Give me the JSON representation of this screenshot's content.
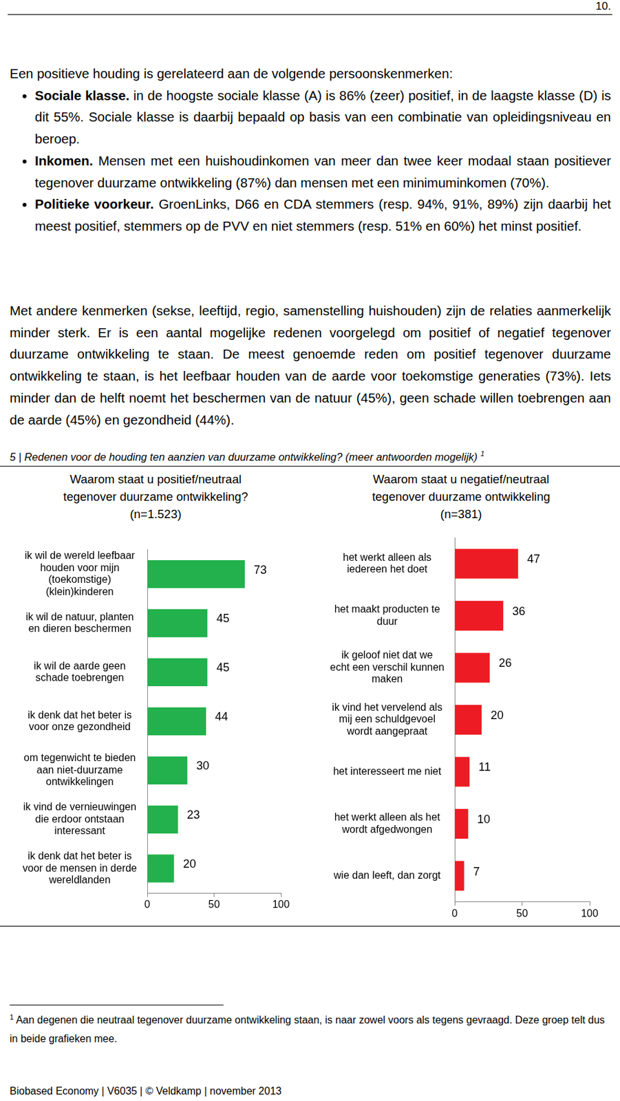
{
  "page_number": "10.",
  "intro": "Een positieve houding is gerelateerd aan de volgende persoonskenmerken:",
  "bullets": [
    {
      "lead": "Sociale klasse.",
      "text": "in de hoogste sociale klasse (A) is 86% (zeer) positief, in de laagste klasse (D) is dit 55%. Sociale klasse is daarbij bepaald op basis van een combinatie van opleidingsniveau en beroep."
    },
    {
      "lead": "Inkomen.",
      "text": "Mensen met een huishoudinkomen van meer dan twee keer modaal staan positiever tegenover duurzame ontwikkeling (87%) dan mensen met een minimuminkomen (70%)."
    },
    {
      "lead": "Politieke voorkeur.",
      "text": "GroenLinks, D66 en CDA stemmers (resp. 94%, 91%, 89%) zijn daarbij het meest positief, stemmers op de PVV en niet stemmers (resp. 51% en 60%) het minst positief."
    }
  ],
  "paragraph": "Met andere kenmerken (sekse, leeftijd, regio, samenstelling huishouden) zijn de relaties aanmerkelijk minder sterk. Er is een aantal mogelijke redenen voorgelegd om positief of negatief tegenover duurzame ontwikkeling te staan. De meest genoemde reden om positief tegenover duurzame ontwikkeling te staan, is het leefbaar houden van de aarde voor toekomstige generaties (73%). Iets minder dan de helft noemt het beschermen van de natuur (45%), geen schade willen toebrengen aan de aarde (45%) en gezondheid (44%).",
  "figure_caption": {
    "text": "5 | Redenen voor de houding ten aanzien van duurzame ontwikkeling? (meer antwoorden mogelijk)",
    "footnote_marker": "1"
  },
  "chart_data": [
    {
      "type": "bar",
      "orientation": "horizontal",
      "title": "Waarom staat u positief/neutraal tegenover duurzame ontwikkeling?",
      "subtitle": "(n=1.523)",
      "categories": [
        "ik wil de wereld leefbaar houden voor mijn (toekomstige) (klein)kinderen",
        "ik wil de natuur, planten en dieren beschermen",
        "ik wil de aarde geen schade toebrengen",
        "ik denk dat het beter is voor onze gezondheid",
        "om tegenwicht te bieden aan niet-duurzame ontwikkelingen",
        "ik vind de vernieuwingen die erdoor ontstaan interessant",
        "ik denk dat het beter is voor de mensen in derde wereldlanden"
      ],
      "values": [
        73,
        45,
        45,
        44,
        30,
        23,
        20
      ],
      "color": "#22b14c",
      "xlim": [
        0,
        100
      ],
      "xticks": [
        0,
        50,
        100
      ],
      "grid": false,
      "data_labels": true
    },
    {
      "type": "bar",
      "orientation": "horizontal",
      "title": "Waarom staat u negatief/neutraal tegenover duurzame ontwikkeling",
      "subtitle": "(n=381)",
      "categories": [
        "het werkt alleen als iedereen het doet",
        "het maakt producten te duur",
        "ik geloof niet dat we echt een verschil kunnen maken",
        "ik vind het vervelend als mij een schuldgevoel wordt aangepraat",
        "het interesseert me niet",
        "het werkt alleen als het wordt afgedwongen",
        "wie dan leeft, dan zorgt"
      ],
      "values": [
        47,
        36,
        26,
        20,
        11,
        10,
        7
      ],
      "color": "#ed1c24",
      "xlim": [
        0,
        100
      ],
      "xticks": [
        0,
        50,
        100
      ],
      "grid": false,
      "data_labels": true
    }
  ],
  "footnote": {
    "marker": "1",
    "text": "Aan degenen die neutraal tegenover duurzame ontwikkeling staan, is naar zowel voors als tegens gevraagd. Deze groep telt dus in beide grafieken mee."
  },
  "footer": "Biobased Economy | V6035 | © Veldkamp | november 2013"
}
